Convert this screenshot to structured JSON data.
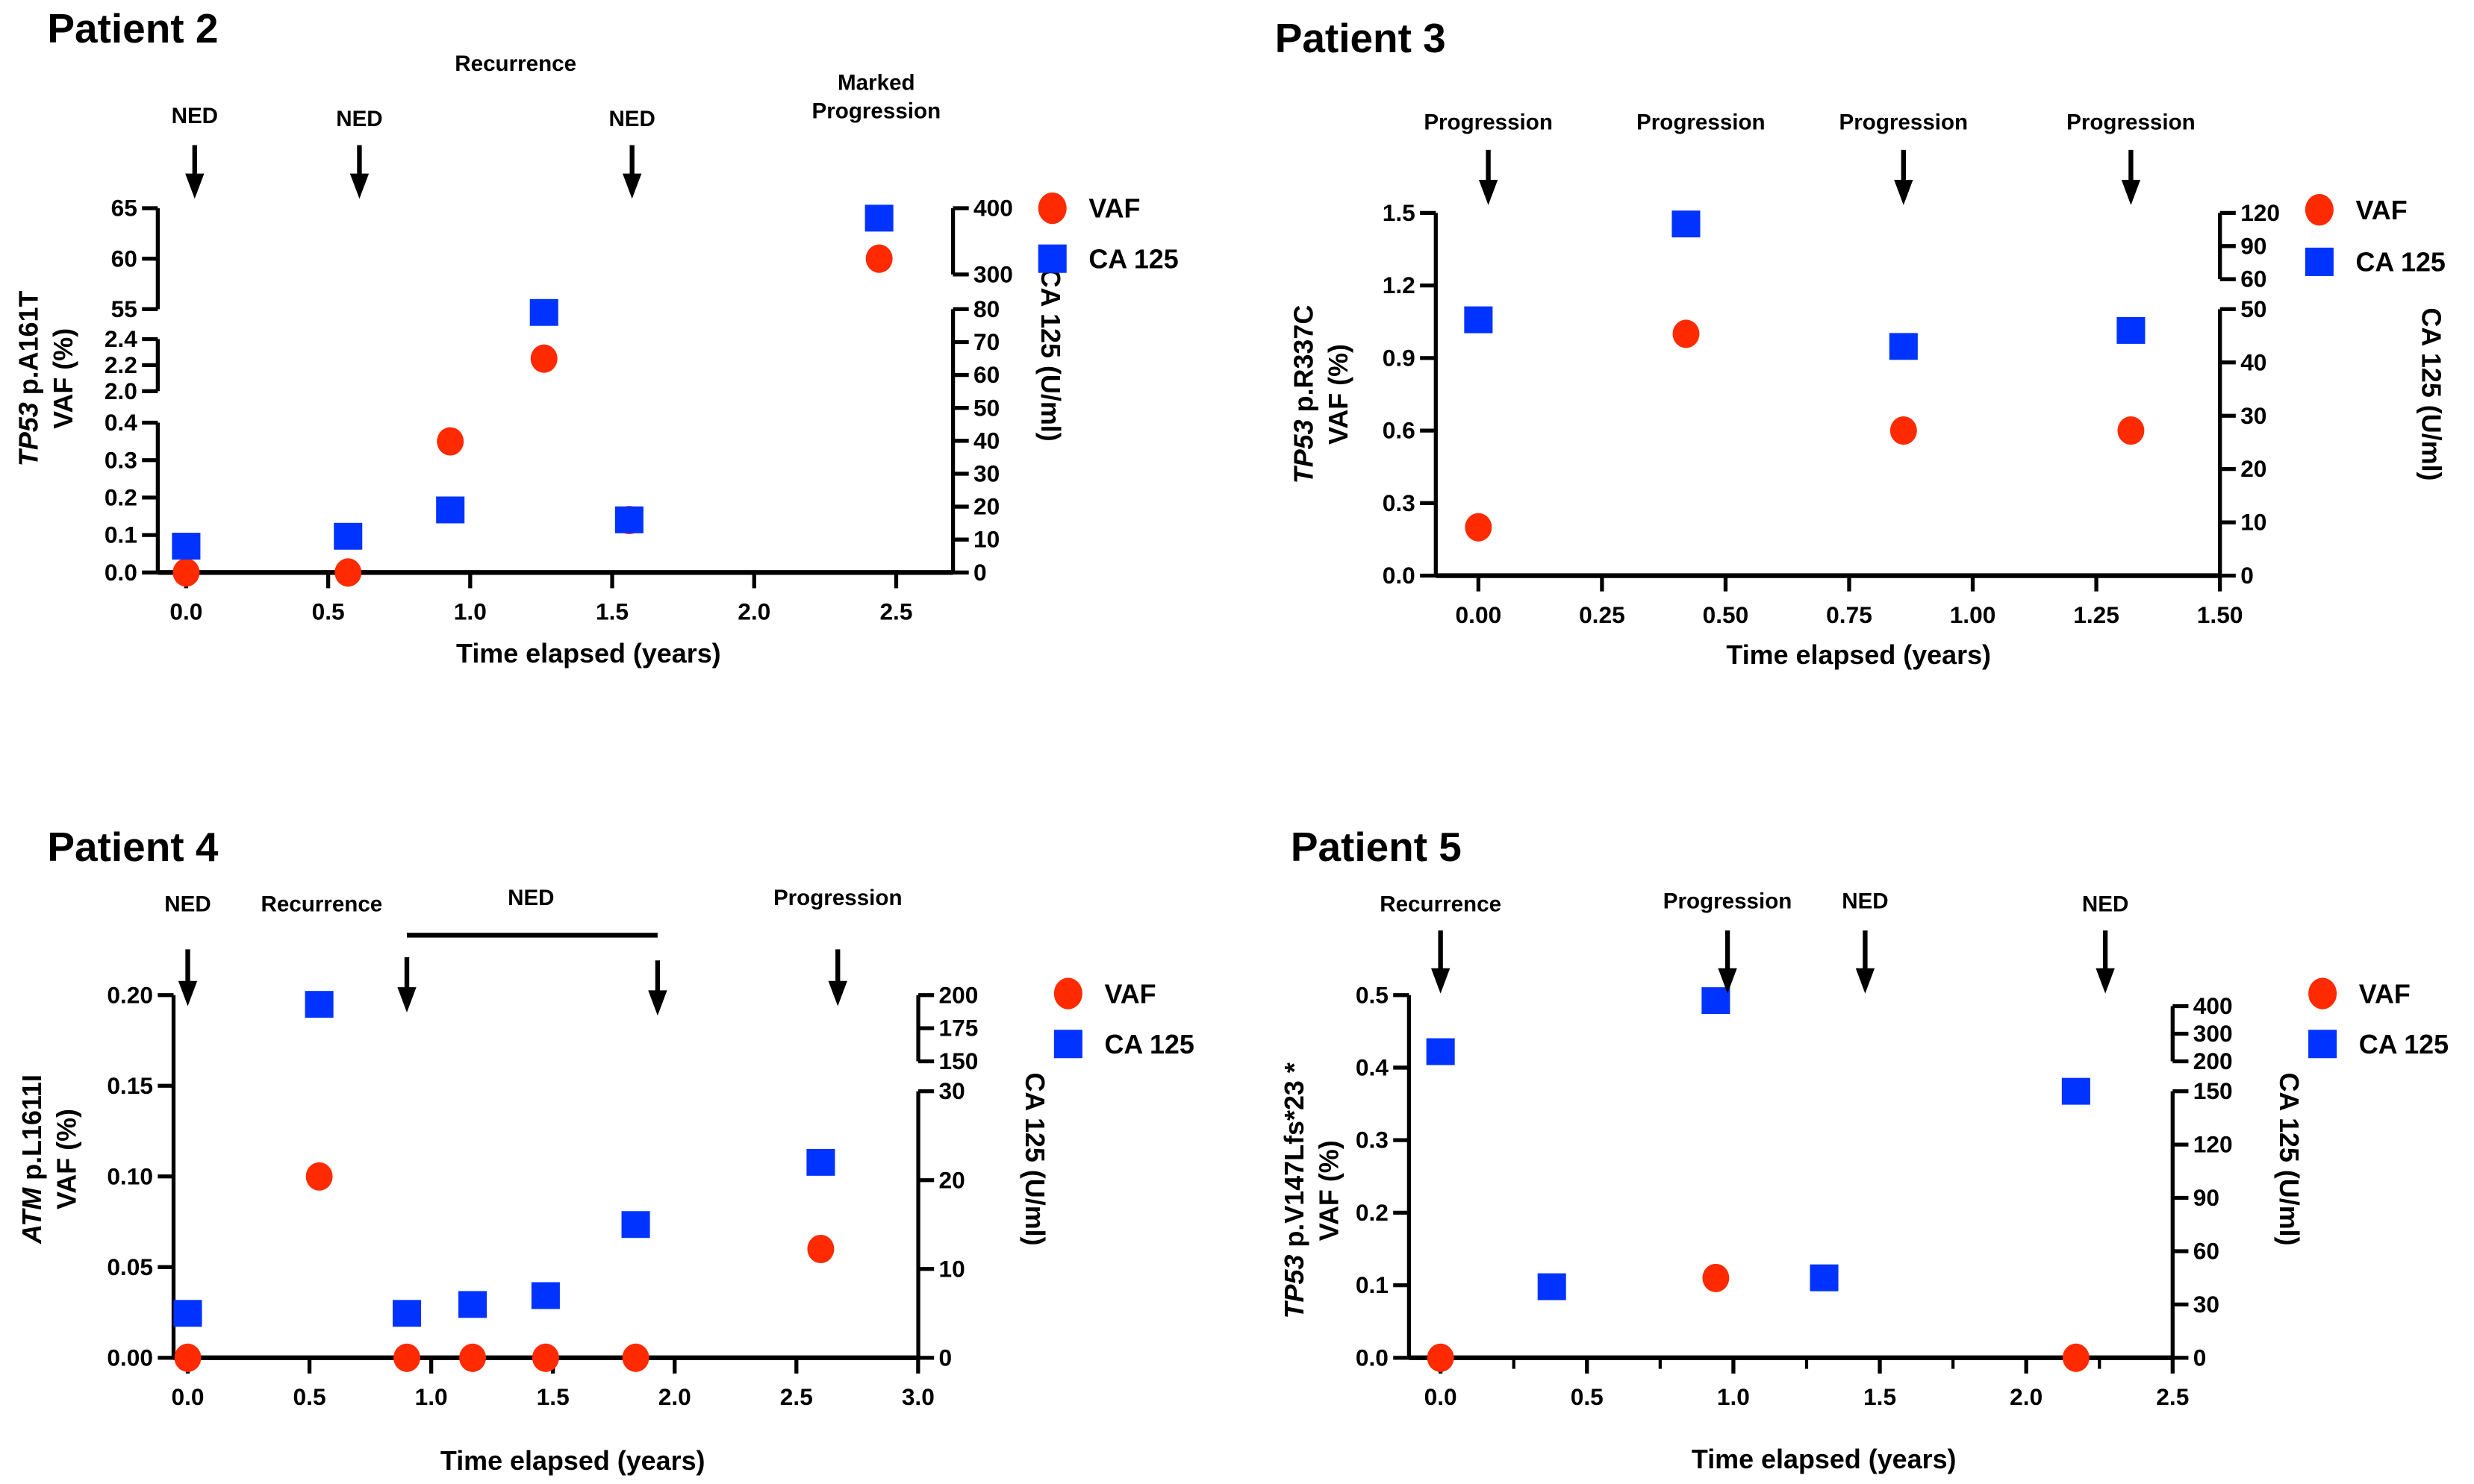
{
  "colors": {
    "vaf": "#ff2a00",
    "ca125": "#0033ff",
    "axis": "#000000"
  },
  "chart_data": [
    {
      "type": "scatter",
      "title": "Patient 2",
      "xlabel": "Time elapsed (years)",
      "ylabel_gene": "TP53",
      "ylabel_rest": " p.A161T",
      "ylabel_line2": "VAF (%)",
      "y2label": "CA 125 (U/ml)",
      "legend": [
        "VAF",
        "CA 125"
      ],
      "legend_position": "top-right",
      "xlim": [
        -0.1,
        2.7
      ],
      "xticks": [
        "0.0",
        "0.5",
        "1.0",
        "1.5",
        "2.0",
        "2.5"
      ],
      "y_segments": [
        {
          "range": [
            0,
            0.4
          ],
          "ticks": [
            "0.0",
            "0.1",
            "0.2",
            "0.3",
            "0.4"
          ]
        },
        {
          "range": [
            2.0,
            2.4
          ],
          "ticks": [
            "2.0",
            "2.2",
            "2.4"
          ]
        },
        {
          "range": [
            55,
            65
          ],
          "ticks": [
            "55",
            "60",
            "65"
          ]
        }
      ],
      "y2_segments": [
        {
          "range": [
            0,
            80
          ],
          "ticks": [
            "0",
            "10",
            "20",
            "30",
            "40",
            "50",
            "60",
            "70",
            "80"
          ]
        },
        {
          "range": [
            300,
            400
          ],
          "ticks": [
            "300",
            "400"
          ]
        }
      ],
      "series": [
        {
          "name": "VAF",
          "axis": "left",
          "marker": "circle",
          "x": [
            0,
            0.57,
            0.93,
            1.26,
            1.56,
            2.44
          ],
          "y": [
            0,
            0,
            0.35,
            2.25,
            0.14,
            60
          ]
        },
        {
          "name": "CA 125",
          "axis": "right",
          "marker": "square",
          "x": [
            0,
            0.57,
            0.93,
            1.26,
            1.56,
            2.44
          ],
          "y": [
            8,
            11,
            19,
            79,
            16,
            385
          ]
        }
      ],
      "annotations": [
        {
          "label": "NED",
          "x": 0.03,
          "arrow": true
        },
        {
          "label": "NED",
          "x": 0.61,
          "arrow": true
        },
        {
          "label": "Recurrence",
          "x": 1.16,
          "arrow": false
        },
        {
          "label": "NED",
          "x": 1.57,
          "arrow": true
        },
        {
          "label": "Marked",
          "label2": "Progression",
          "x": 2.43,
          "arrow": false
        }
      ]
    },
    {
      "type": "scatter",
      "title": "Patient 3",
      "xlabel": "Time elapsed (years)",
      "ylabel_gene": "TP53",
      "ylabel_rest": " p.R337C",
      "ylabel_line2": "VAF (%)",
      "y2label": "CA 125 (U/ml)",
      "legend": [
        "VAF",
        "CA 125"
      ],
      "legend_position": "top-right",
      "xlim": [
        -0.09,
        1.5
      ],
      "xticks": [
        "0.00",
        "0.25",
        "0.50",
        "0.75",
        "1.00",
        "1.25",
        "1.50"
      ],
      "y_segments": [
        {
          "range": [
            0,
            1.5
          ],
          "ticks": [
            "0.0",
            "0.3",
            "0.6",
            "0.9",
            "1.2",
            "1.5"
          ]
        }
      ],
      "y2_segments": [
        {
          "range": [
            0,
            50
          ],
          "ticks": [
            "0",
            "10",
            "20",
            "30",
            "40",
            "50"
          ]
        },
        {
          "range": [
            60,
            120
          ],
          "ticks": [
            "60",
            "90",
            "120"
          ]
        }
      ],
      "series": [
        {
          "name": "VAF",
          "axis": "left",
          "marker": "circle",
          "x": [
            0,
            0.42,
            0.86,
            1.32
          ],
          "y": [
            0.2,
            1.0,
            0.6,
            0.6
          ]
        },
        {
          "name": "CA 125",
          "axis": "right",
          "marker": "square",
          "x": [
            0,
            0.42,
            0.86,
            1.32
          ],
          "y": [
            48,
            110,
            43,
            46
          ]
        }
      ],
      "annotations": [
        {
          "label": "Progression",
          "x": 0.02,
          "arrow": true
        },
        {
          "label": "Progression",
          "x": 0.45,
          "arrow": false
        },
        {
          "label": "Progression",
          "x": 0.86,
          "arrow": true
        },
        {
          "label": "Progression",
          "x": 1.32,
          "arrow": true
        }
      ]
    },
    {
      "type": "scatter",
      "title": "Patient 4",
      "xlabel": "Time elapsed (years)",
      "ylabel_gene": "ATM",
      "ylabel_rest": " p.L1611I",
      "ylabel_line2": "VAF (%)",
      "y2label": "CA 125 (U/ml)",
      "legend": [
        "VAF",
        "CA 125"
      ],
      "legend_position": "top-right",
      "xlim": [
        -0.06,
        3.0
      ],
      "xticks": [
        "0.0",
        "0.5",
        "1.0",
        "1.5",
        "2.0",
        "2.5",
        "3.0"
      ],
      "y_segments": [
        {
          "range": [
            0,
            0.2
          ],
          "ticks": [
            "0.00",
            "0.05",
            "0.10",
            "0.15",
            "0.20"
          ]
        }
      ],
      "y2_segments": [
        {
          "range": [
            0,
            30
          ],
          "ticks": [
            "0",
            "10",
            "20",
            "30"
          ]
        },
        {
          "range": [
            150,
            200
          ],
          "ticks": [
            "150",
            "175",
            "200"
          ]
        }
      ],
      "series": [
        {
          "name": "VAF",
          "axis": "left",
          "marker": "circle",
          "x": [
            0,
            0.54,
            0.9,
            1.17,
            1.47,
            1.84,
            2.6
          ],
          "y": [
            0,
            0.1,
            0,
            0,
            0,
            0,
            0.06
          ]
        },
        {
          "name": "CA 125",
          "axis": "right",
          "marker": "square",
          "x": [
            0,
            0.54,
            0.9,
            1.17,
            1.47,
            1.84,
            2.6
          ],
          "y": [
            5,
            193,
            5,
            6,
            7,
            15,
            22
          ]
        }
      ],
      "annotations": [
        {
          "label": "NED",
          "x": 0.0,
          "arrow": true
        },
        {
          "label": "Recurrence",
          "x": 0.55,
          "arrow": false
        },
        {
          "label": "NED",
          "x": 1.41,
          "arrow": false,
          "span": [
            0.9,
            1.93
          ]
        },
        {
          "label": "Progression",
          "x": 2.67,
          "arrow": true
        }
      ]
    },
    {
      "type": "scatter",
      "title": "Patient 5",
      "xlabel": "Time elapsed (years)",
      "ylabel_gene": "TP53",
      "ylabel_rest": " p.V147Lfs*23 *",
      "ylabel_line2": "VAF (%)",
      "y2label": "CA 125 (U/ml)",
      "legend": [
        "VAF",
        "CA 125"
      ],
      "legend_position": "top-right",
      "xlim": [
        -0.11,
        2.5
      ],
      "xticks": [
        "0.0",
        "0.5",
        "1.0",
        "1.5",
        "2.0",
        "2.5"
      ],
      "y_segments": [
        {
          "range": [
            0,
            0.5
          ],
          "ticks": [
            "0.0",
            "0.1",
            "0.2",
            "0.3",
            "0.4",
            "0.5"
          ]
        }
      ],
      "y2_segments": [
        {
          "range": [
            0,
            150
          ],
          "ticks": [
            "0",
            "30",
            "60",
            "90",
            "120",
            "150"
          ]
        },
        {
          "range": [
            200,
            400
          ],
          "ticks": [
            "200",
            "300",
            "400"
          ]
        }
      ],
      "series": [
        {
          "name": "VAF",
          "axis": "left",
          "marker": "circle",
          "x": [
            0,
            0.94,
            2.17
          ],
          "y": [
            0,
            0.11,
            0
          ]
        },
        {
          "name": "CA 125",
          "axis": "right",
          "marker": "square",
          "x": [
            0,
            0.38,
            0.94,
            1.31,
            2.17
          ],
          "y": [
            235,
            40,
            420,
            45,
            150
          ]
        }
      ],
      "annotations": [
        {
          "label": "Recurrence",
          "x": 0.0,
          "arrow": true
        },
        {
          "label": "Progression",
          "x": 0.98,
          "arrow": true
        },
        {
          "label": "NED",
          "x": 1.45,
          "arrow": true
        },
        {
          "label": "NED",
          "x": 2.27,
          "arrow": true
        }
      ]
    }
  ]
}
